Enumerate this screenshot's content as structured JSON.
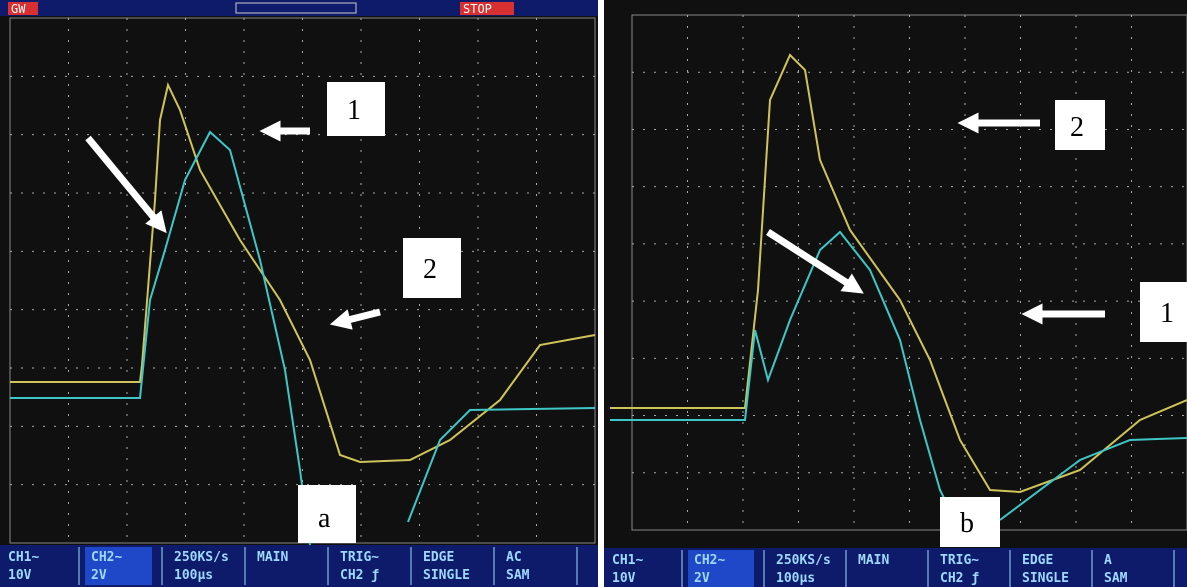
{
  "panels": [
    {
      "header": {
        "left": "GW",
        "right": "STOP"
      },
      "labels": [
        "1",
        "2"
      ],
      "caption": "a",
      "status": [
        [
          "CH1∼",
          "10V"
        ],
        [
          "CH2∼",
          "2V"
        ],
        [
          "250KS/s",
          "100μs"
        ],
        [
          "MAIN",
          ""
        ],
        [
          "TRIG∼",
          "CH2 ƒ"
        ],
        [
          "EDGE",
          "SINGLE"
        ],
        [
          "AC",
          "SAM"
        ]
      ]
    },
    {
      "labels": [
        "2",
        "1"
      ],
      "caption": "b",
      "status": [
        [
          "CH1∼",
          "10V"
        ],
        [
          "CH2∼",
          "2V"
        ],
        [
          "250KS/s",
          "100μs"
        ],
        [
          "MAIN",
          ""
        ],
        [
          "TRIG∼",
          "CH2 ƒ"
        ],
        [
          "EDGE",
          "SINGLE"
        ],
        [
          "A",
          "SAM"
        ]
      ]
    }
  ]
}
